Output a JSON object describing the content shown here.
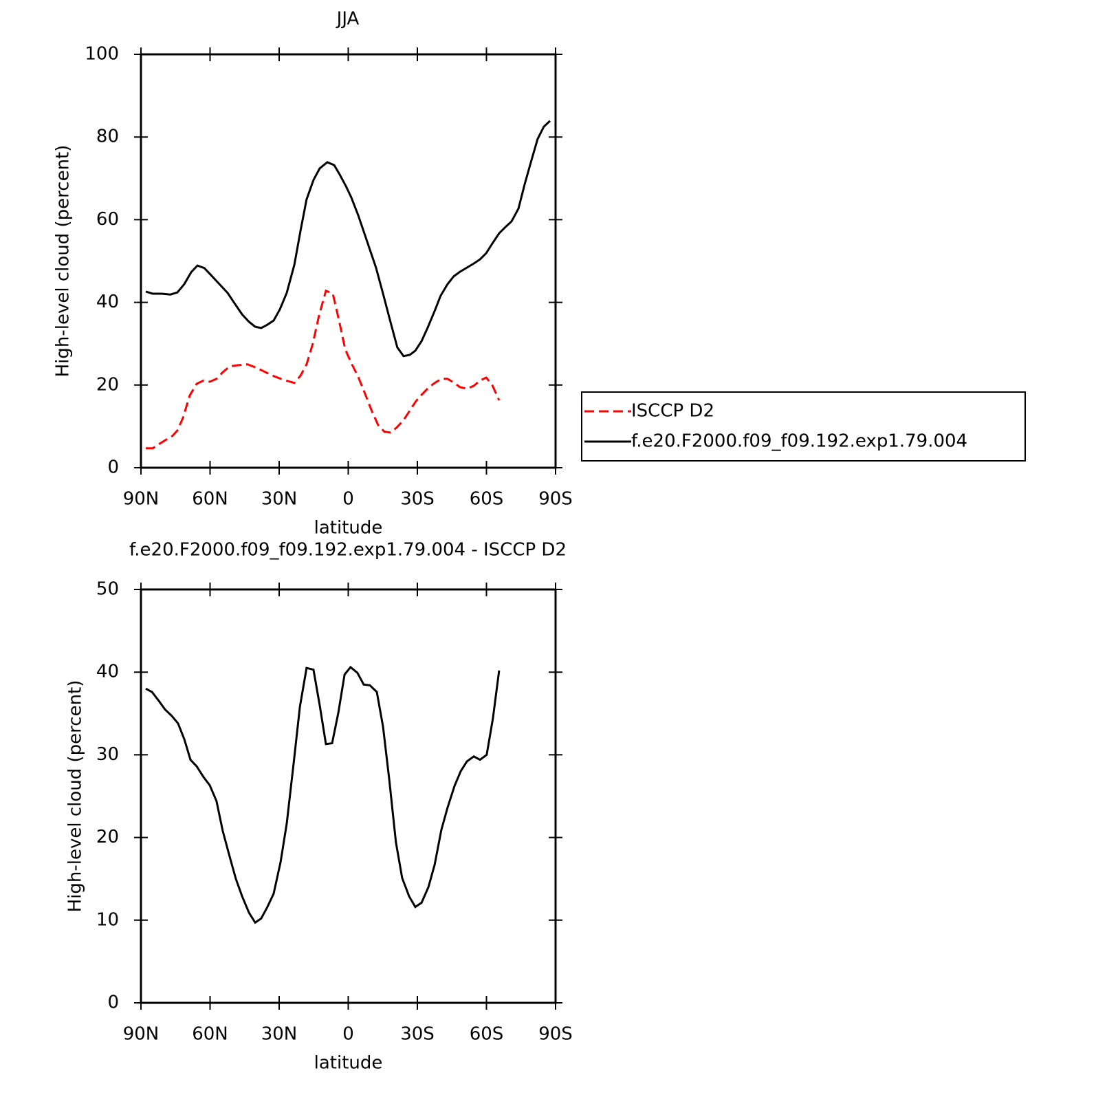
{
  "chart_data": [
    {
      "type": "line",
      "title": "JJA",
      "xlabel": "latitude",
      "ylabel": "High-level cloud (percent)",
      "xlim": [
        90,
        -90
      ],
      "xticks": [
        {
          "value": 90,
          "label": "90N"
        },
        {
          "value": 60,
          "label": "60N"
        },
        {
          "value": 30,
          "label": "30N"
        },
        0,
        {
          "value": -30,
          "label": "30S"
        },
        {
          "value": -60,
          "label": "60S"
        },
        {
          "value": -90,
          "label": "90S"
        }
      ],
      "ylim": [
        0,
        100
      ],
      "yticks": [
        0,
        20,
        40,
        60,
        80,
        100
      ],
      "legend": "right",
      "series": [
        {
          "name": "ISCCP D2",
          "color": "#ff0000",
          "style": "dashed",
          "x": [
            87.9,
            84.9,
            82.2,
            79.3,
            76.3,
            74.2,
            71.8,
            68.8,
            65.8,
            62.8,
            60.1,
            57.2,
            54.5,
            51.5,
            47.9,
            43.7,
            40.4,
            36.6,
            33.0,
            29.7,
            26.4,
            23.4,
            20.7,
            18.1,
            15.4,
            12.7,
            9.7,
            6.7,
            4.0,
            1.3,
            -1.6,
            -4.3,
            -7.0,
            -10.3,
            -13.0,
            -15.7,
            -18.4,
            -21.0,
            -24.0,
            -26.7,
            -29.4,
            -32.1,
            -35.1,
            -37.8,
            -40.4,
            -43.1,
            -45.8,
            -48.5,
            -51.5,
            -54.5,
            -57.2,
            -59.9,
            -62.5,
            -65.5
          ],
          "values": [
            4.7,
            4.7,
            5.7,
            6.7,
            7.7,
            9.0,
            12.0,
            17.5,
            20.3,
            21.1,
            20.8,
            21.5,
            23.1,
            24.5,
            24.8,
            25.0,
            24.3,
            23.3,
            22.3,
            21.6,
            21.0,
            20.5,
            22.3,
            25.0,
            30.0,
            36.8,
            42.8,
            42.1,
            35.6,
            28.6,
            25.0,
            22.0,
            18.3,
            13.6,
            10.3,
            8.7,
            8.5,
            9.7,
            11.5,
            13.8,
            16.1,
            17.8,
            19.5,
            20.6,
            21.5,
            21.5,
            20.6,
            19.5,
            19.1,
            19.8,
            21.1,
            21.8,
            20.0,
            16.3
          ]
        },
        {
          "name": "f.e20.F2000.f09_f09.192.exp1.79.004",
          "color": "#000000",
          "style": "solid",
          "x": [
            87.9,
            84.9,
            81.0,
            77.2,
            74.2,
            71.2,
            68.2,
            65.5,
            62.5,
            59.6,
            56.6,
            52.4,
            49.4,
            46.1,
            43.1,
            40.4,
            37.8,
            35.1,
            32.4,
            29.7,
            26.7,
            23.4,
            20.7,
            18.1,
            15.1,
            12.4,
            9.1,
            6.1,
            3.7,
            1.0,
            -1.3,
            -4.3,
            -7.6,
            -12.1,
            -15.1,
            -18.4,
            -21.3,
            -24.0,
            -26.7,
            -29.1,
            -31.8,
            -34.5,
            -37.5,
            -40.1,
            -43.1,
            -45.8,
            -48.5,
            -51.5,
            -54.5,
            -57.2,
            -59.9,
            -62.5,
            -65.5,
            -68.2,
            -70.9,
            -73.9,
            -76.6,
            -79.6,
            -82.2,
            -84.9,
            -87.6
          ],
          "values": [
            42.6,
            42.1,
            42.1,
            41.9,
            42.4,
            44.4,
            47.3,
            48.9,
            48.3,
            46.6,
            44.8,
            42.3,
            39.8,
            37.1,
            35.3,
            34.1,
            33.8,
            34.6,
            35.6,
            38.3,
            42.3,
            49.1,
            57.4,
            64.9,
            69.6,
            72.4,
            73.9,
            73.2,
            70.9,
            68.1,
            65.4,
            61.1,
            55.7,
            48.3,
            42.1,
            35.1,
            29.1,
            27.0,
            27.3,
            28.3,
            30.6,
            33.9,
            37.9,
            41.6,
            44.4,
            46.3,
            47.4,
            48.4,
            49.4,
            50.4,
            51.9,
            54.2,
            56.7,
            58.2,
            59.6,
            62.7,
            68.6,
            74.5,
            79.5,
            82.5,
            83.9
          ]
        }
      ]
    },
    {
      "type": "line",
      "title": "f.e20.F2000.f09_f09.192.exp1.79.004 - ISCCP D2",
      "xlabel": "latitude",
      "ylabel": "High-level cloud (percent)",
      "xlim": [
        90,
        -90
      ],
      "xticks": [
        {
          "value": 90,
          "label": "90N"
        },
        {
          "value": 60,
          "label": "60N"
        },
        {
          "value": 30,
          "label": "30N"
        },
        0,
        {
          "value": -30,
          "label": "30S"
        },
        {
          "value": -60,
          "label": "60S"
        },
        {
          "value": -90,
          "label": "90S"
        }
      ],
      "ylim": [
        0,
        50
      ],
      "yticks": [
        0,
        10,
        20,
        30,
        40,
        50
      ],
      "series": [
        {
          "color": "#000000",
          "style": "solid",
          "x": [
            87.9,
            85.2,
            81.9,
            79.6,
            76.6,
            73.9,
            71.2,
            68.5,
            65.8,
            62.8,
            60.1,
            57.2,
            54.5,
            51.5,
            48.8,
            46.1,
            43.1,
            40.4,
            37.8,
            35.1,
            32.4,
            29.4,
            26.7,
            23.7,
            21.0,
            18.1,
            15.1,
            12.4,
            9.7,
            7.0,
            4.3,
            1.6,
            -1.0,
            -4.0,
            -6.7,
            -9.4,
            -12.4,
            -15.1,
            -17.8,
            -20.7,
            -23.4,
            -26.4,
            -29.1,
            -31.8,
            -34.8,
            -37.5,
            -40.4,
            -43.1,
            -46.1,
            -48.8,
            -51.5,
            -54.5,
            -57.2,
            -60.1,
            -62.8,
            -65.5
          ],
          "values": [
            38.0,
            37.6,
            36.4,
            35.5,
            34.7,
            33.8,
            31.9,
            29.4,
            28.6,
            27.3,
            26.3,
            24.4,
            20.8,
            17.7,
            15.0,
            12.9,
            10.9,
            9.7,
            10.2,
            11.6,
            13.2,
            17.0,
            21.7,
            29.0,
            35.8,
            40.5,
            40.3,
            36.0,
            31.3,
            31.4,
            35.1,
            39.7,
            40.6,
            39.9,
            38.5,
            38.4,
            37.6,
            33.4,
            27.0,
            19.4,
            15.1,
            12.9,
            11.6,
            12.1,
            14.0,
            16.7,
            20.9,
            23.6,
            26.2,
            28.0,
            29.2,
            29.8,
            29.4,
            30.0,
            34.4,
            40.2
          ]
        }
      ]
    }
  ]
}
